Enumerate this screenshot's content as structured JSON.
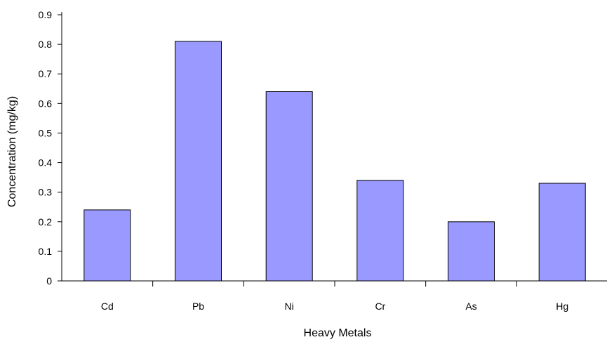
{
  "chart_data": {
    "type": "bar",
    "title": "",
    "xlabel": "Heavy Metals",
    "ylabel": "Concentration (mg/kg)",
    "categories": [
      "Cd",
      "Pb",
      "Ni",
      "Cr",
      "As",
      "Hg"
    ],
    "values": [
      0.24,
      0.81,
      0.64,
      0.34,
      0.2,
      0.33
    ],
    "ylim": [
      0,
      0.9
    ],
    "yticks": [
      "0",
      "0.1",
      "0.2",
      "0.3",
      "0.4",
      "0.5",
      "0.6",
      "0.7",
      "0.8",
      "0.9"
    ],
    "grid": false,
    "legend": "none",
    "bar_color": "#9999ff",
    "bar_stroke": "#000000"
  }
}
